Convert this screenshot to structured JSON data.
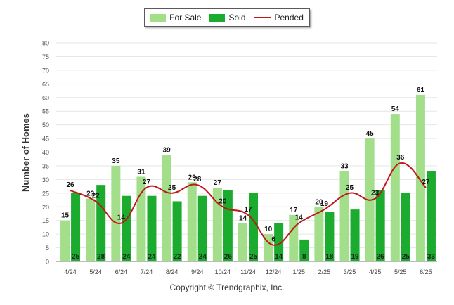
{
  "legend": {
    "for_sale": "For Sale",
    "sold": "Sold",
    "pended": "Pended"
  },
  "colors": {
    "for_sale": "#a3df8a",
    "sold": "#1aab2f",
    "pended": "#c0171b"
  },
  "copyright": "Copyright © Trendgraphix, Inc.",
  "chart_data": {
    "type": "bar",
    "title": "",
    "xlabel": "",
    "ylabel": "Number of Homes",
    "ylim": [
      0,
      80
    ],
    "yticks": [
      0,
      5,
      10,
      15,
      20,
      25,
      30,
      35,
      40,
      45,
      50,
      55,
      60,
      65,
      70,
      75,
      80
    ],
    "grid": true,
    "legend_position": "top-center",
    "categories": [
      "4/24",
      "5/24",
      "6/24",
      "7/24",
      "8/24",
      "9/24",
      "10/24",
      "11/24",
      "12/24",
      "1/25",
      "2/25",
      "3/25",
      "4/25",
      "5/25",
      "6/25"
    ],
    "series": [
      {
        "name": "For Sale",
        "type": "bar",
        "values": [
          15,
          23,
          35,
          31,
          39,
          29,
          27,
          14,
          10,
          17,
          20,
          33,
          45,
          54,
          61
        ]
      },
      {
        "name": "Sold",
        "type": "bar",
        "values": [
          25,
          28,
          24,
          24,
          22,
          24,
          26,
          25,
          14,
          8,
          18,
          19,
          26,
          25,
          33
        ]
      },
      {
        "name": "Pended",
        "type": "line",
        "values": [
          26,
          22,
          14,
          27,
          25,
          28,
          20,
          17,
          6,
          14,
          19,
          25,
          23,
          36,
          27
        ]
      }
    ]
  }
}
